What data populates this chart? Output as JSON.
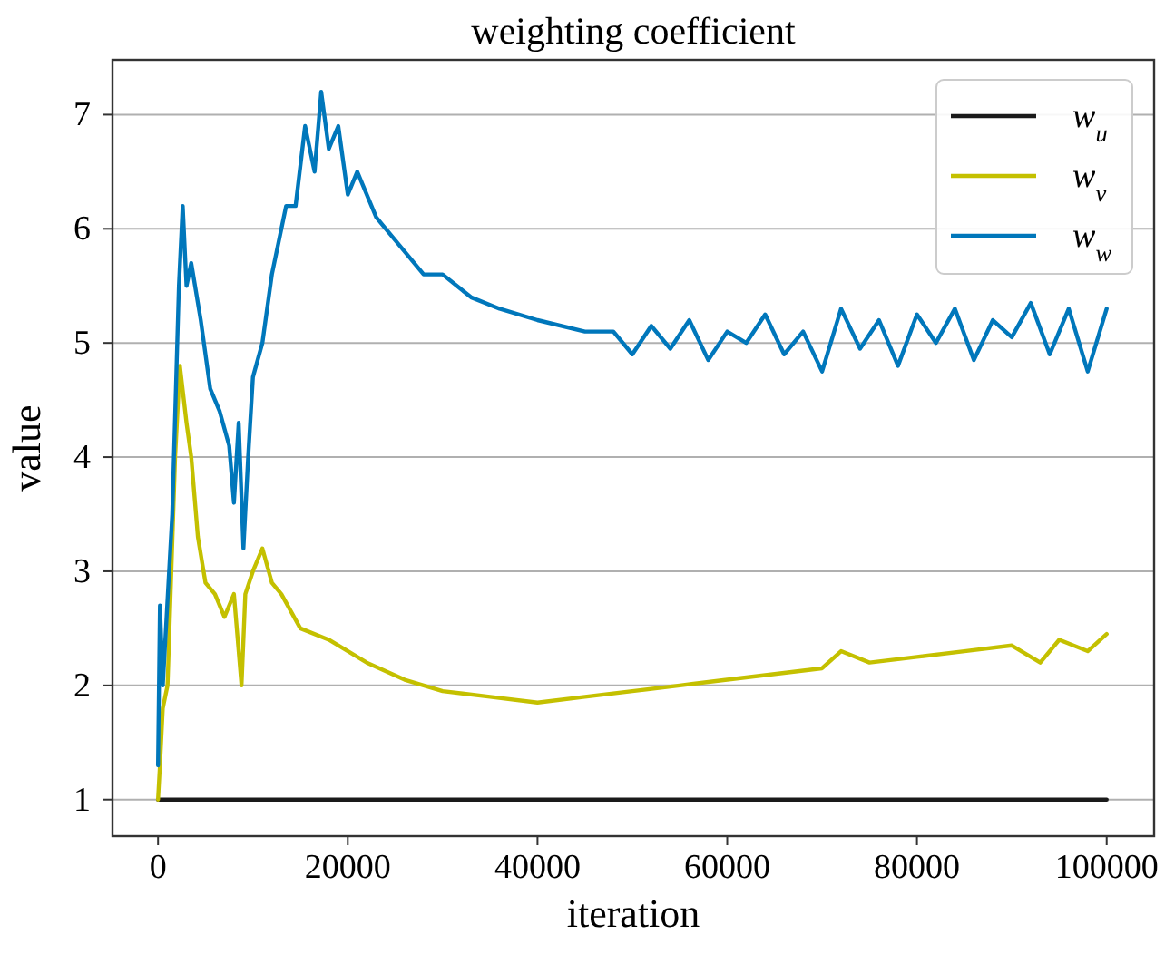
{
  "chart_data": {
    "type": "line",
    "title": "weighting coefficient",
    "xlabel": "iteration",
    "ylabel": "value",
    "xlim": [
      -4800,
      105000
    ],
    "ylim": [
      0.68,
      7.48
    ],
    "xticks": [
      0,
      20000,
      40000,
      60000,
      80000,
      100000
    ],
    "yticks": [
      1,
      2,
      3,
      4,
      5,
      6,
      7
    ],
    "grid": "y",
    "legend": "top right",
    "line_style": "solid",
    "marker": "none",
    "series": [
      {
        "name": "w$_{u}$",
        "color": "#1a1a1a",
        "x": [
          0,
          100000
        ],
        "values": [
          1,
          1
        ]
      },
      {
        "name": "w$_{v}$",
        "color": "#c4c000",
        "x": [
          0,
          200,
          500,
          1000,
          1800,
          2300,
          3000,
          3500,
          4200,
          5000,
          6000,
          7000,
          8000,
          8800,
          9200,
          10000,
          11000,
          12000,
          13000,
          15000,
          18000,
          22000,
          26000,
          30000,
          35000,
          40000,
          45000,
          50000,
          55000,
          60000,
          65000,
          70000,
          72000,
          75000,
          80000,
          85000,
          90000,
          93000,
          95000,
          98000,
          100000
        ],
        "values": [
          1.0,
          1.3,
          1.8,
          2.0,
          4.0,
          4.8,
          4.3,
          4.0,
          3.3,
          2.9,
          2.8,
          2.6,
          2.8,
          2.0,
          2.8,
          3.0,
          3.2,
          2.9,
          2.8,
          2.5,
          2.4,
          2.2,
          2.05,
          1.95,
          1.9,
          1.85,
          1.9,
          1.95,
          2.0,
          2.05,
          2.1,
          2.15,
          2.3,
          2.2,
          2.25,
          2.3,
          2.35,
          2.2,
          2.4,
          2.3,
          2.45
        ]
      },
      {
        "name": "w$_{w}$",
        "color": "#0077bb",
        "x": [
          0,
          200,
          500,
          1500,
          2200,
          2600,
          3000,
          3500,
          4500,
          5500,
          6500,
          7500,
          8000,
          8500,
          9000,
          9500,
          10000,
          11000,
          12000,
          13500,
          14500,
          15500,
          16500,
          17200,
          18000,
          19000,
          20000,
          21000,
          23000,
          25000,
          28000,
          30000,
          33000,
          36000,
          40000,
          45000,
          48000,
          50000,
          52000,
          54000,
          56000,
          58000,
          60000,
          62000,
          64000,
          66000,
          68000,
          70000,
          72000,
          74000,
          76000,
          78000,
          80000,
          82000,
          84000,
          86000,
          88000,
          90000,
          92000,
          94000,
          96000,
          98000,
          100000
        ],
        "values": [
          1.3,
          2.7,
          2.0,
          3.5,
          5.5,
          6.2,
          5.5,
          5.7,
          5.2,
          4.6,
          4.4,
          4.1,
          3.6,
          4.3,
          3.2,
          4.0,
          4.7,
          5.0,
          5.6,
          6.2,
          6.2,
          6.9,
          6.5,
          7.2,
          6.7,
          6.9,
          6.3,
          6.5,
          6.1,
          5.9,
          5.6,
          5.6,
          5.4,
          5.3,
          5.2,
          5.1,
          5.1,
          4.9,
          5.15,
          4.95,
          5.2,
          4.85,
          5.1,
          5.0,
          5.25,
          4.9,
          5.1,
          4.75,
          5.3,
          4.95,
          5.2,
          4.8,
          5.25,
          5.0,
          5.3,
          4.85,
          5.2,
          5.05,
          5.35,
          4.9,
          5.3,
          4.75,
          5.3
        ]
      }
    ]
  }
}
